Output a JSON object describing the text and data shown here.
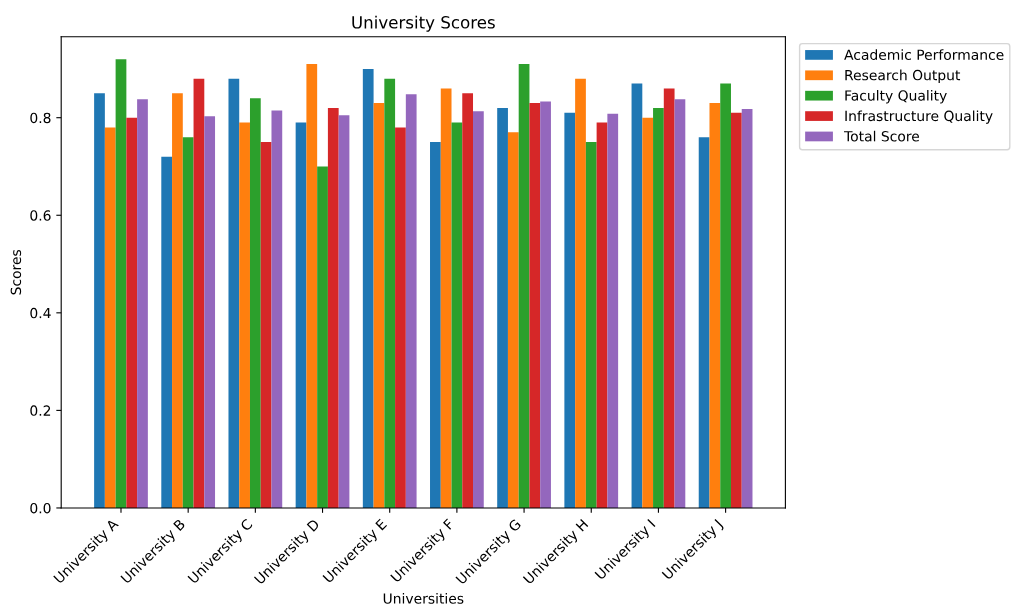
{
  "chart_data": {
    "type": "bar",
    "title": "University Scores",
    "xlabel": "Universities",
    "ylabel": "Scores",
    "categories": [
      "University A",
      "University B",
      "University C",
      "University D",
      "University E",
      "University F",
      "University G",
      "University H",
      "University I",
      "University J"
    ],
    "series": [
      {
        "name": "Academic Performance",
        "color": "#1f77b4",
        "values": [
          0.85,
          0.72,
          0.88,
          0.79,
          0.9,
          0.75,
          0.82,
          0.81,
          0.87,
          0.76
        ]
      },
      {
        "name": "Research Output",
        "color": "#ff7f0e",
        "values": [
          0.78,
          0.85,
          0.79,
          0.91,
          0.83,
          0.86,
          0.77,
          0.88,
          0.8,
          0.83
        ]
      },
      {
        "name": "Faculty Quality",
        "color": "#2ca02c",
        "values": [
          0.92,
          0.76,
          0.84,
          0.7,
          0.88,
          0.79,
          0.91,
          0.75,
          0.82,
          0.87
        ]
      },
      {
        "name": "Infrastructure Quality",
        "color": "#d62728",
        "values": [
          0.8,
          0.88,
          0.75,
          0.82,
          0.78,
          0.85,
          0.83,
          0.79,
          0.86,
          0.81
        ]
      },
      {
        "name": "Total Score",
        "color": "#9467bd",
        "values": [
          0.838,
          0.803,
          0.815,
          0.805,
          0.848,
          0.813,
          0.833,
          0.808,
          0.838,
          0.818
        ]
      }
    ],
    "ylim": [
      0,
      0.966
    ],
    "yticks": [
      {
        "value": 0,
        "label": "0.0"
      },
      {
        "value": 0.2,
        "label": "0.2"
      },
      {
        "value": 0.4,
        "label": "0.4"
      },
      {
        "value": 0.6,
        "label": "0.6"
      },
      {
        "value": 0.8,
        "label": "0.8"
      }
    ],
    "grid": false,
    "legend": "top right"
  }
}
